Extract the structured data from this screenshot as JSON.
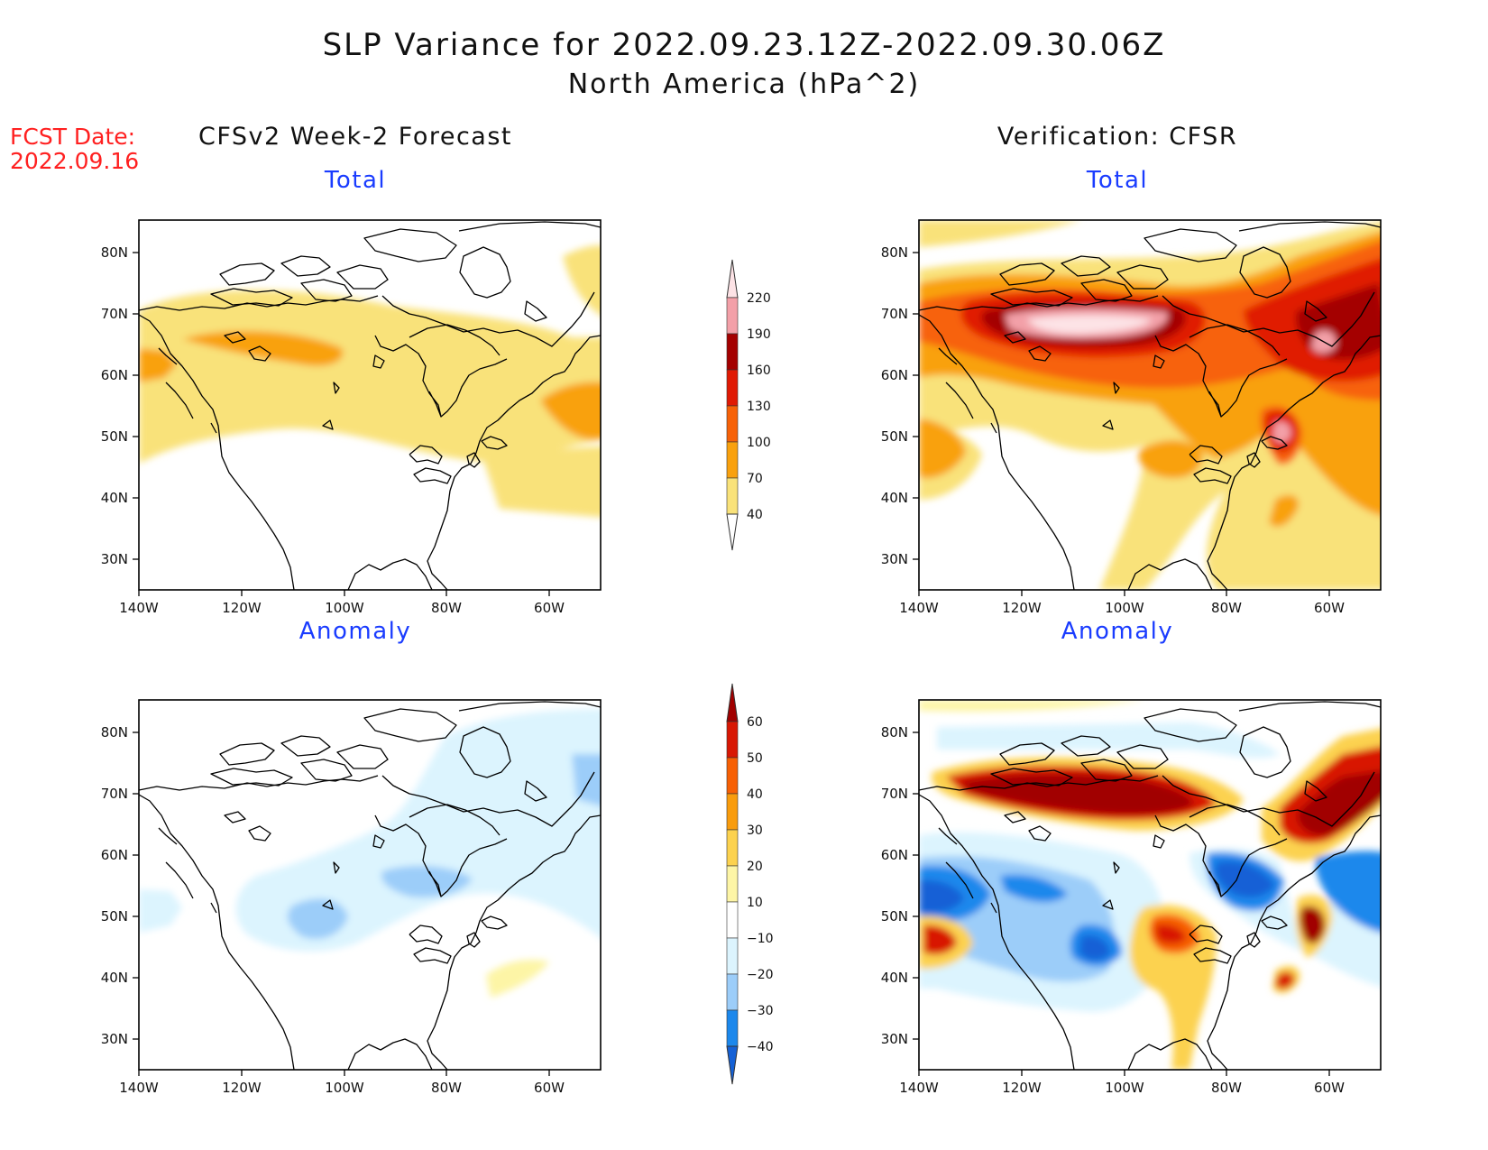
{
  "title": "SLP Variance for 2022.09.23.12Z-2022.09.30.06Z",
  "subtitle": "North America (hPa^2)",
  "fcst_date_label": "FCST Date:",
  "fcst_date": "2022.09.16",
  "columns": [
    {
      "title": "CFSv2 Week-2 Forecast"
    },
    {
      "title": "Verification: CFSR"
    }
  ],
  "panel_titles": {
    "total": "Total",
    "anomaly": "Anomaly"
  },
  "chart_data": {
    "type": "heatmap",
    "projection": "cylindrical lat-lon",
    "lon_range": [
      -140,
      -50
    ],
    "lat_range": [
      25,
      85
    ],
    "x_ticks": [
      "140W",
      "120W",
      "100W",
      "80W",
      "60W"
    ],
    "y_ticks": [
      "80N",
      "70N",
      "60N",
      "50N",
      "40N",
      "30N"
    ],
    "total_colorbar": {
      "levels": [
        40,
        70,
        100,
        130,
        160,
        190,
        220
      ],
      "colors": [
        "#f9e27a",
        "#f9a10e",
        "#f76208",
        "#e01a04",
        "#a40000",
        "#f3a0a8",
        "#fde3e6"
      ]
    },
    "anomaly_colorbar": {
      "levels": [
        -40,
        -30,
        -20,
        -10,
        10,
        20,
        30,
        40,
        50,
        60
      ],
      "colors": [
        "#1561d6",
        "#1c88ec",
        "#9ccdf9",
        "#dcf4fe",
        "#ffffff",
        "#fdf5a6",
        "#fcd24f",
        "#f99c0d",
        "#f76004",
        "#d81804",
        "#a10000"
      ]
    },
    "panels": [
      {
        "id": "forecast_total",
        "column": "CFSv2 Week-2 Forecast",
        "field": "Total",
        "features": [
          {
            "level": 40,
            "desc": "broad band 45N-72N across continent"
          },
          {
            "level": 70,
            "desc": "maxima near 62N 115W, 57N 140W, 52N 58W"
          }
        ]
      },
      {
        "id": "verification_total",
        "column": "Verification: CFSR",
        "field": "Total",
        "features": [
          {
            "level": 40,
            "desc": "band 40N-80N"
          },
          {
            "level": 190,
            "desc": "maximum near 66N 110W exceeding 220"
          },
          {
            "level": 190,
            "desc": "maxima near 61N 60W and 47N 63W"
          }
        ]
      },
      {
        "id": "forecast_anomaly",
        "column": "CFSv2 Week-2 Forecast",
        "field": "Anomaly",
        "features": [
          {
            "level": -10,
            "desc": "weak negative over most of continent"
          },
          {
            "level": -20,
            "desc": "minima near 50N 103W and 55N 88W"
          },
          {
            "level": 10,
            "desc": "weak positive near 40N 68W"
          }
        ]
      },
      {
        "id": "verification_anomaly",
        "column": "Verification: CFSR",
        "field": "Anomaly",
        "features": [
          {
            "level": 60,
            "desc": "large positive near 67N 105W"
          },
          {
            "level": -30,
            "desc": "negatives near 52N 135W, 46N 105W, 55N 73W, 52N 52W"
          },
          {
            "level": 30,
            "desc": "positives near 44N 85W, 44N 62W, 62N 62W, 45N 136W"
          }
        ]
      }
    ]
  }
}
